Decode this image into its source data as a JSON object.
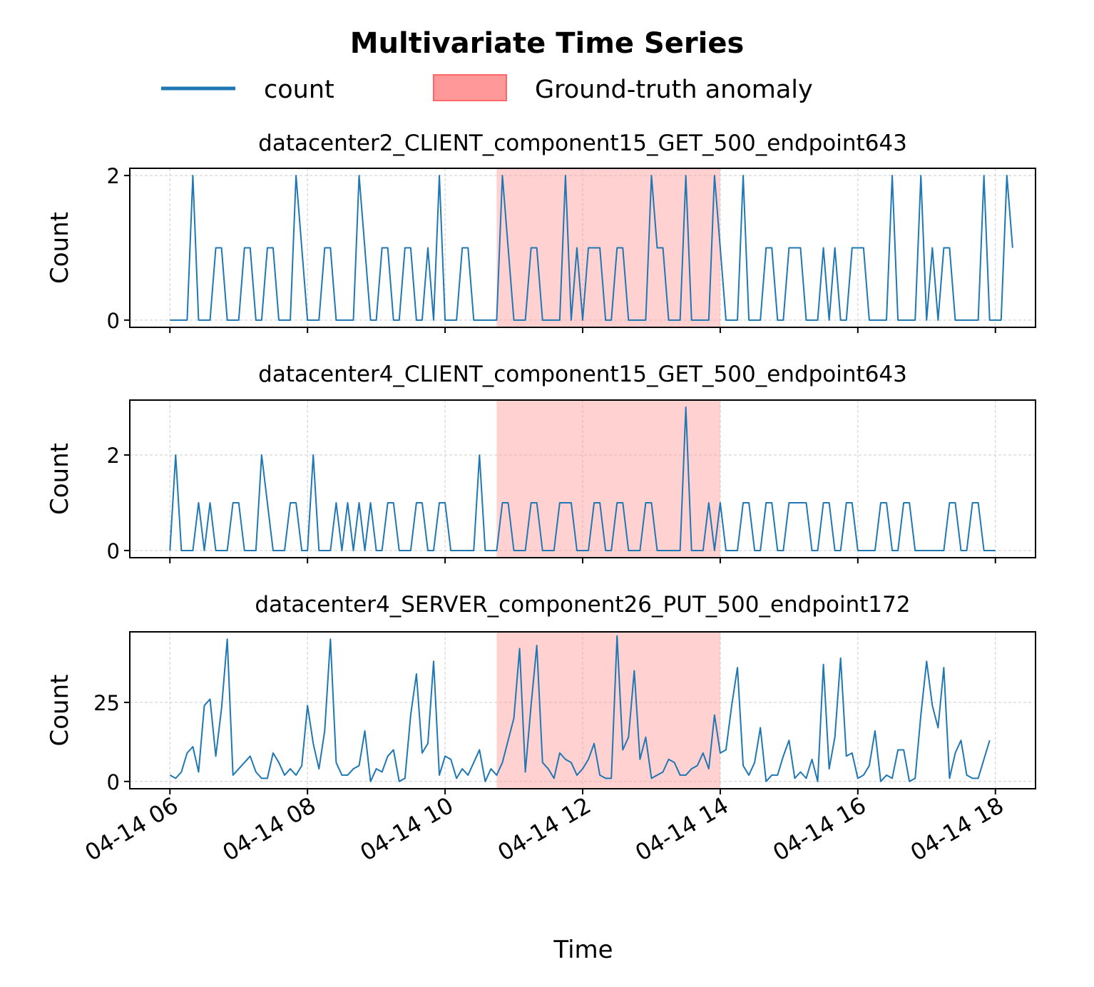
{
  "figure": {
    "title": "Multivariate Time Series",
    "xlabel": "Time",
    "legend": {
      "series_label": "count",
      "anomaly_label": "Ground-truth anomaly",
      "placement": "top-center"
    }
  },
  "chart_data": [
    {
      "type": "line",
      "title": "datacenter2_CLIENT_component15_GET_500_endpoint643",
      "ylabel": "Count",
      "x_start": "2024-04-14 06:00",
      "x_end": "2024-04-14 18:00",
      "x_step_minutes": 5,
      "xlim": [
        "2024-04-14 05:25",
        "2024-04-14 18:35"
      ],
      "ylim": [
        -0.1,
        2.1
      ],
      "yticks": [
        0,
        2
      ],
      "grid": true,
      "anomaly": [
        "2024-04-14 10:45",
        "2024-04-14 14:00"
      ],
      "series": [
        {
          "name": "count",
          "color": "#1f77b4",
          "values": [
            0,
            0,
            0,
            0,
            2,
            0,
            0,
            0,
            1,
            1,
            0,
            0,
            0,
            1,
            1,
            0,
            0,
            1,
            1,
            0,
            0,
            0,
            2,
            1,
            0,
            0,
            0,
            1,
            1,
            0,
            0,
            0,
            0,
            2,
            1,
            0,
            0,
            1,
            1,
            0,
            0,
            1,
            1,
            0,
            0,
            1,
            0,
            2,
            0,
            0,
            0,
            1,
            1,
            0,
            0,
            0,
            0,
            0,
            2,
            1,
            0,
            0,
            0,
            1,
            1,
            0,
            0,
            0,
            0,
            2,
            0,
            1,
            0,
            1,
            1,
            1,
            0,
            0,
            1,
            1,
            0,
            0,
            0,
            0,
            2,
            1,
            1,
            0,
            0,
            0,
            2,
            0,
            0,
            0,
            0,
            2,
            1,
            0,
            0,
            0,
            2,
            0,
            0,
            0,
            1,
            1,
            0,
            0,
            1,
            1,
            1,
            0,
            0,
            0,
            1,
            0,
            1,
            0,
            0,
            1,
            1,
            1,
            0,
            0,
            0,
            0,
            2,
            0,
            0,
            0,
            0,
            2,
            0,
            1,
            0,
            1,
            1,
            0,
            0,
            0,
            0,
            0,
            2,
            0,
            0,
            0,
            2,
            1
          ]
        }
      ]
    },
    {
      "type": "line",
      "title": "datacenter4_CLIENT_component15_GET_500_endpoint643",
      "ylabel": "Count",
      "x_start": "2024-04-14 06:00",
      "x_end": "2024-04-14 18:00",
      "x_step_minutes": 5,
      "xlim": [
        "2024-04-14 05:25",
        "2024-04-14 18:35"
      ],
      "ylim": [
        -0.15,
        3.15
      ],
      "yticks": [
        0,
        2
      ],
      "grid": true,
      "anomaly": [
        "2024-04-14 10:45",
        "2024-04-14 14:00"
      ],
      "series": [
        {
          "name": "count",
          "color": "#1f77b4",
          "values": [
            0,
            2,
            0,
            0,
            0,
            1,
            0,
            1,
            0,
            0,
            0,
            1,
            1,
            0,
            0,
            0,
            2,
            1,
            0,
            0,
            0,
            1,
            1,
            0,
            0,
            2,
            0,
            0,
            0,
            1,
            0,
            1,
            0,
            1,
            0,
            1,
            0,
            0,
            1,
            1,
            0,
            0,
            0,
            1,
            1,
            0,
            0,
            1,
            1,
            0,
            0,
            0,
            0,
            0,
            2,
            0,
            0,
            0,
            1,
            1,
            0,
            0,
            0,
            1,
            1,
            0,
            0,
            0,
            1,
            1,
            1,
            0,
            0,
            0,
            1,
            1,
            0,
            0,
            1,
            1,
            0,
            0,
            0,
            1,
            1,
            0,
            0,
            0,
            0,
            0,
            3,
            0,
            0,
            0,
            1,
            0,
            1,
            0,
            0,
            0,
            1,
            1,
            0,
            0,
            1,
            1,
            0,
            0,
            1,
            1,
            1,
            1,
            0,
            0,
            1,
            1,
            0,
            0,
            1,
            1,
            0,
            0,
            0,
            0,
            1,
            1,
            0,
            0,
            1,
            1,
            0,
            0,
            0,
            0,
            0,
            0,
            1,
            1,
            0,
            0,
            1,
            1,
            0,
            0,
            0
          ]
        }
      ]
    },
    {
      "type": "line",
      "title": "datacenter4_SERVER_component26_PUT_500_endpoint172",
      "ylabel": "Count",
      "x_start": "2024-04-14 06:00",
      "x_end": "2024-04-14 18:00",
      "x_step_minutes": 5,
      "xlim": [
        "2024-04-14 05:25",
        "2024-04-14 18:35"
      ],
      "ylim": [
        -2.3,
        47.3
      ],
      "yticks": [
        0,
        25
      ],
      "grid": true,
      "anomaly": [
        "2024-04-14 10:45",
        "2024-04-14 14:00"
      ],
      "xticks": [
        "04-14 06",
        "04-14 08",
        "04-14 10",
        "04-14 12",
        "04-14 14",
        "04-14 16",
        "04-14 18"
      ],
      "series": [
        {
          "name": "count",
          "color": "#1f77b4",
          "values": [
            2,
            1,
            3,
            9,
            11,
            3,
            24,
            26,
            8,
            23,
            45,
            2,
            4,
            6,
            8,
            3,
            1,
            1,
            9,
            6,
            2,
            4,
            2,
            5,
            24,
            12,
            4,
            16,
            45,
            6,
            2,
            2,
            4,
            5,
            16,
            0,
            4,
            3,
            8,
            10,
            0,
            1,
            21,
            34,
            9,
            12,
            38,
            2,
            8,
            7,
            1,
            4,
            2,
            6,
            10,
            0,
            4,
            2,
            6,
            13,
            20,
            42,
            3,
            24,
            43,
            6,
            4,
            1,
            9,
            7,
            6,
            2,
            4,
            7,
            12,
            2,
            1,
            1,
            46,
            10,
            14,
            35,
            7,
            14,
            1,
            2,
            3,
            7,
            6,
            2,
            2,
            4,
            5,
            9,
            4,
            21,
            9,
            10,
            24,
            36,
            5,
            2,
            6,
            17,
            0,
            2,
            2,
            8,
            13,
            1,
            3,
            1,
            7,
            0,
            37,
            4,
            14,
            39,
            8,
            9,
            1,
            2,
            5,
            16,
            0,
            2,
            1,
            10,
            10,
            0,
            1,
            21,
            38,
            24,
            17,
            36,
            1,
            9,
            13,
            2,
            1,
            1,
            7,
            13
          ]
        }
      ]
    }
  ]
}
